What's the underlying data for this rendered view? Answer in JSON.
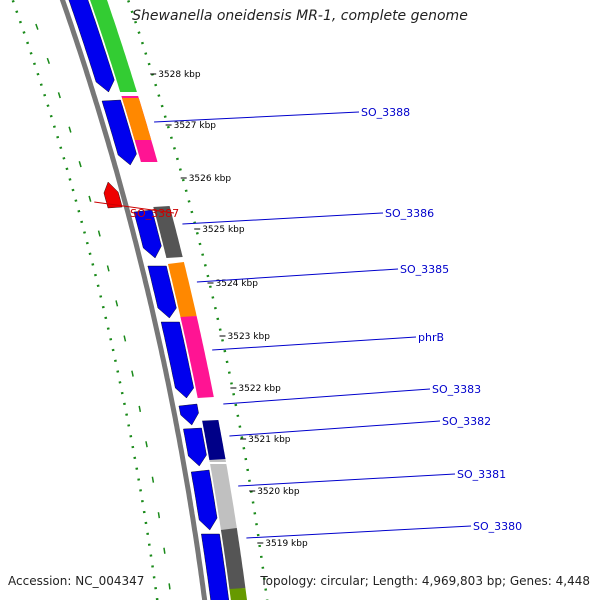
{
  "title": "Shewanella oneidensis MR-1, complete genome",
  "footer": {
    "accession": "Accession: NC_004347",
    "summary": "Topology: circular; Length: 4,969,803 bp; Genes: 4,448"
  },
  "colors": {
    "forward_cds": "#0000ee",
    "reverse_cds": "#ee0000",
    "backbone": "#777777",
    "gc_ticks": "#1a8a1a",
    "label_link": "#0000cc",
    "reverse_label": "#cc0000",
    "cog_green": "#33cc33",
    "cog_orange": "#ff8800",
    "cog_pink": "#ff1493",
    "cog_darkgray": "#555555",
    "cog_lightgray": "#c0c0c0",
    "cog_navy": "#000088",
    "cog_olive": "#669900"
  },
  "ruler_ticks": [
    {
      "label": "3528 kbp"
    },
    {
      "label": "3527 kbp"
    },
    {
      "label": "3526 kbp"
    },
    {
      "label": "3525 kbp"
    },
    {
      "label": "3524 kbp"
    },
    {
      "label": "3523 kbp"
    },
    {
      "label": "3522 kbp"
    },
    {
      "label": "3521 kbp"
    },
    {
      "label": "3520 kbp"
    },
    {
      "label": "3519 kbp"
    }
  ],
  "gene_labels": [
    {
      "name": "SO_3388",
      "strand": "forward"
    },
    {
      "name": "SO_3387",
      "strand": "reverse"
    },
    {
      "name": "SO_3386",
      "strand": "forward"
    },
    {
      "name": "SO_3385",
      "strand": "forward"
    },
    {
      "name": "phrB",
      "strand": "forward"
    },
    {
      "name": "SO_3383",
      "strand": "forward"
    },
    {
      "name": "SO_3382",
      "strand": "forward"
    },
    {
      "name": "SO_3381",
      "strand": "forward"
    },
    {
      "name": "SO_3380",
      "strand": "forward"
    }
  ]
}
